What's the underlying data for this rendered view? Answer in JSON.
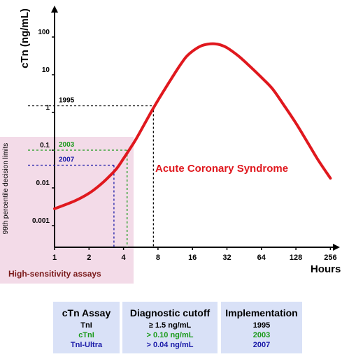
{
  "chart_data": {
    "type": "line",
    "xlabel": "Hours",
    "ylabel": "cTn (ng/mL)",
    "x_scale": "log2",
    "y_scale": "log10",
    "x_ticks": [
      "1",
      "2",
      "4",
      "8",
      "16",
      "32",
      "64",
      "128",
      "256"
    ],
    "y_ticks": [
      "0.001",
      "0.01",
      "0.1",
      "1",
      "10",
      "100"
    ],
    "series": [
      {
        "name": "Acute Coronary Syndrome",
        "color": "#e0181e",
        "x": [
          1,
          1.5,
          2,
          2.5,
          3,
          3.5,
          4,
          5,
          6,
          7,
          8,
          10,
          12,
          14,
          16,
          19,
          22,
          25,
          28,
          32,
          40,
          50,
          64,
          80,
          100,
          128,
          160,
          200,
          256
        ],
        "y": [
          0.0028,
          0.0045,
          0.0072,
          0.012,
          0.02,
          0.033,
          0.06,
          0.17,
          0.45,
          1.05,
          2.1,
          6.3,
          15,
          29,
          42,
          58,
          65,
          66,
          62,
          52,
          32,
          17.5,
          8.5,
          4.2,
          1.6,
          0.52,
          0.17,
          0.055,
          0.018
        ]
      }
    ],
    "annotations": [
      {
        "label": "1995",
        "y": 1.5,
        "x_cross": 7.3,
        "color": "#000000"
      },
      {
        "label": "2003",
        "y": 0.1,
        "x_cross": 4.3,
        "color": "#1a9a1a"
      },
      {
        "label": "2007",
        "y": 0.04,
        "x_cross": 3.3,
        "color": "#1a1aa8"
      }
    ],
    "series_label": "Acute Coronary Syndrome",
    "region": {
      "label": "High-sensitivity assays",
      "side_label": "99th percentile decision limits",
      "color": "#f3dbe8",
      "label_color": "#7a1a1a"
    }
  },
  "table": {
    "columns": [
      {
        "header": "cTn Assay",
        "rows": [
          "TnI",
          "cTnI",
          "TnI-Ultra"
        ]
      },
      {
        "header": "Diagnostic cutoff",
        "rows": [
          "≥ 1.5 ng/mL",
          "> 0.10 ng/mL",
          "> 0.04 ng/mL"
        ]
      },
      {
        "header": "Implementation",
        "rows": [
          "1995",
          "2003",
          "2007"
        ]
      }
    ],
    "row_colors": [
      "#000000",
      "#1a9a1a",
      "#1a1aa8"
    ],
    "background": "#d9e1f7"
  }
}
